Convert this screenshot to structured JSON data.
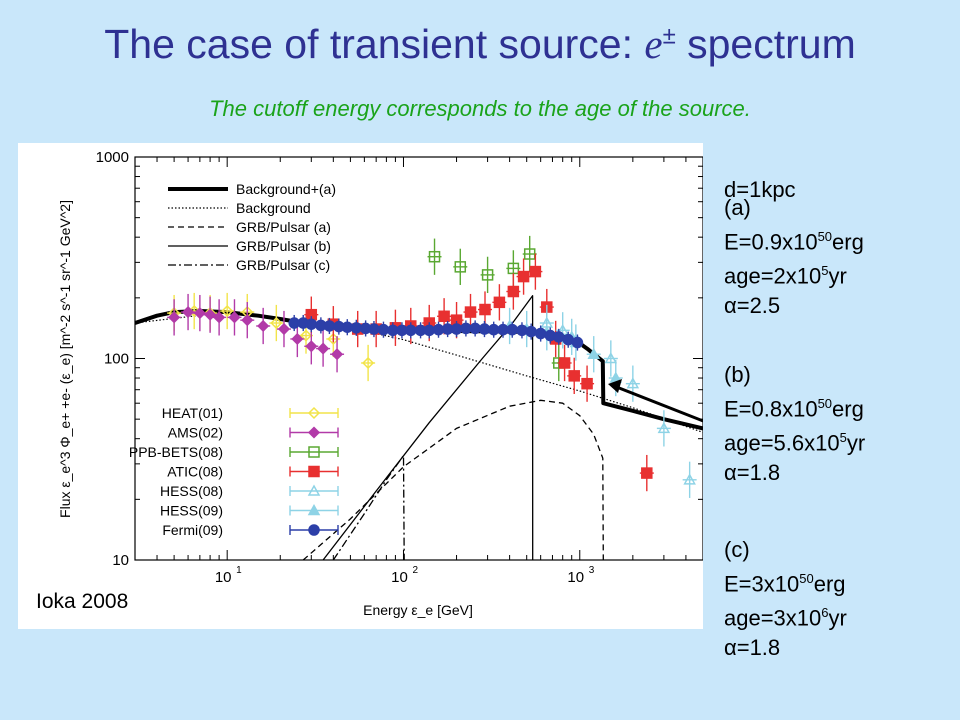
{
  "slide": {
    "title_main": "The case of transient source: ",
    "title_symbol": "e",
    "title_pm": "±",
    "title_tail": " spectrum",
    "subtitle": "The cutoff energy corresponds to the age of the source.",
    "credit": "Ioka 2008",
    "distance": "d=1kpc",
    "params": [
      {
        "tag": "(a)",
        "E_pre": "E=0.9x10",
        "E_exp": "50",
        "E_post": "erg",
        "age_pre": "age=2x10",
        "age_exp": "5",
        "age_post": "yr",
        "alpha": "=2.5"
      },
      {
        "tag": "(b)",
        "E_pre": "E=0.8x10",
        "E_exp": "50",
        "E_post": "erg",
        "age_pre": "age=5.6x10",
        "age_exp": "5",
        "age_post": "yr",
        "alpha": "=1.8"
      },
      {
        "tag": "(c)",
        "E_pre": "E=3x10",
        "E_exp": "50",
        "E_post": "erg",
        "age_pre": "age=3x10",
        "age_exp": "6",
        "age_post": "yr",
        "alpha": "=1.8"
      }
    ],
    "alpha_symbol": "α"
  },
  "chart_data": {
    "type": "line",
    "xscale": "log",
    "yscale": "log",
    "xlim": [
      3,
      5000
    ],
    "ylim": [
      10,
      1000
    ],
    "xlabel": "Energy ε_e [GeV]",
    "ylabel": "Flux ε_e^3 Φ_e+ +e- (ε_e) [m^-2 s^-1 sr^-1 GeV^2]",
    "xticks": [
      {
        "v": 10,
        "base": "10",
        "exp": "1"
      },
      {
        "v": 100,
        "base": "10",
        "exp": "2"
      },
      {
        "v": 1000,
        "base": "10",
        "exp": "3"
      }
    ],
    "yticks": [
      {
        "v": 10,
        "label": "10"
      },
      {
        "v": 100,
        "label": "100"
      },
      {
        "v": 1000,
        "label": "1000"
      }
    ],
    "legend_position": "left",
    "lines": [
      {
        "name": "Background+(a)",
        "style": "thick",
        "color": "#000000",
        "x": [
          3,
          4,
          5,
          7,
          10,
          15,
          20,
          30,
          50,
          100,
          200,
          400,
          550,
          700,
          900,
          1100,
          1350,
          1360,
          2000,
          3000,
          5000
        ],
        "y": [
          150,
          163,
          170,
          172,
          170,
          163,
          157,
          148,
          142,
          138,
          137,
          136,
          135,
          132,
          127,
          112,
          97,
          60,
          55,
          50,
          45
        ]
      },
      {
        "name": "Background",
        "style": "dotted",
        "color": "#000000",
        "x": [
          3,
          10,
          20,
          50,
          100,
          200,
          500,
          1000,
          2000,
          5000
        ],
        "y": [
          150,
          170,
          157,
          142,
          124,
          104,
          82,
          69,
          57,
          43
        ]
      },
      {
        "name": "GRB/Pulsar (a)",
        "style": "dashed",
        "color": "#000000",
        "x": [
          27,
          50,
          100,
          200,
          400,
          600,
          800,
          1000,
          1200,
          1350,
          1360
        ],
        "y": [
          10,
          16,
          29,
          45,
          58,
          62,
          60,
          52,
          42,
          32,
          10
        ]
      },
      {
        "name": "GRB/Pulsar (b)",
        "style": "solid",
        "color": "#000000",
        "x": [
          35,
          70,
          140,
          280,
          420,
          540,
          541
        ],
        "y": [
          10,
          22,
          48,
          100,
          152,
          205,
          10
        ]
      },
      {
        "name": "GRB/Pulsar (c)",
        "style": "dashdot",
        "color": "#000000",
        "x": [
          40,
          60,
          80,
          100,
          101
        ],
        "y": [
          10,
          17,
          25,
          33,
          10
        ]
      }
    ],
    "data_series": [
      {
        "name": "HEAT(01)",
        "color": "#f2e44a",
        "marker": "diamond-open",
        "points": [
          [
            5,
            168
          ],
          [
            6.5,
            172
          ],
          [
            8,
            168
          ],
          [
            10,
            172
          ],
          [
            13,
            170
          ],
          [
            19,
            150
          ],
          [
            28,
            130
          ],
          [
            40,
            125
          ],
          [
            63,
            95
          ]
        ]
      },
      {
        "name": "AMS(02)",
        "color": "#b23aa8",
        "marker": "diamond",
        "points": [
          [
            5,
            160
          ],
          [
            6,
            170
          ],
          [
            7,
            168
          ],
          [
            8,
            165
          ],
          [
            9,
            160
          ],
          [
            11,
            160
          ],
          [
            13,
            155
          ],
          [
            16,
            145
          ],
          [
            21,
            140
          ],
          [
            25,
            125
          ],
          [
            30,
            115
          ],
          [
            35,
            112
          ],
          [
            42,
            105
          ]
        ]
      },
      {
        "name": "PPB-BETS(08)",
        "color": "#5aa832",
        "marker": "square-open",
        "points": [
          [
            150,
            320
          ],
          [
            210,
            285
          ],
          [
            300,
            260
          ],
          [
            420,
            280
          ],
          [
            520,
            330
          ],
          [
            760,
            95
          ]
        ]
      },
      {
        "name": "ATIC(08)",
        "color": "#e83030",
        "marker": "square",
        "points": [
          [
            30,
            165
          ],
          [
            40,
            148
          ],
          [
            55,
            140
          ],
          [
            70,
            140
          ],
          [
            90,
            142
          ],
          [
            110,
            145
          ],
          [
            140,
            150
          ],
          [
            170,
            162
          ],
          [
            200,
            155
          ],
          [
            240,
            170
          ],
          [
            290,
            175
          ],
          [
            350,
            190
          ],
          [
            420,
            215
          ],
          [
            480,
            255
          ],
          [
            560,
            270
          ],
          [
            650,
            180
          ],
          [
            730,
            125
          ],
          [
            820,
            95
          ],
          [
            930,
            82
          ],
          [
            1100,
            75
          ],
          [
            2400,
            27
          ]
        ]
      },
      {
        "name": "HESS(08)",
        "color": "#8ed3e6",
        "marker": "triangle-open",
        "points": [
          [
            650,
            150
          ],
          [
            800,
            138
          ],
          [
            950,
            120
          ],
          [
            1500,
            100
          ],
          [
            2000,
            75
          ],
          [
            3000,
            45
          ],
          [
            4200,
            25
          ]
        ]
      },
      {
        "name": "HESS(09)",
        "color": "#8ed3e6",
        "marker": "triangle",
        "points": [
          [
            400,
            145
          ],
          [
            500,
            140
          ],
          [
            650,
            135
          ],
          [
            900,
            128
          ],
          [
            1200,
            105
          ],
          [
            1600,
            80
          ]
        ]
      },
      {
        "name": "Fermi(09)",
        "color": "#2c3fa8",
        "marker": "circle",
        "points": [
          [
            24,
            150
          ],
          [
            27,
            150
          ],
          [
            30,
            148
          ],
          [
            34,
            146
          ],
          [
            38,
            145
          ],
          [
            43,
            144
          ],
          [
            48,
            143
          ],
          [
            54,
            142
          ],
          [
            61,
            141
          ],
          [
            68,
            140
          ],
          [
            77,
            139
          ],
          [
            87,
            138
          ],
          [
            98,
            138
          ],
          [
            110,
            138
          ],
          [
            125,
            138
          ],
          [
            140,
            138
          ],
          [
            158,
            139
          ],
          [
            178,
            140
          ],
          [
            200,
            140
          ],
          [
            226,
            141
          ],
          [
            255,
            141
          ],
          [
            288,
            140
          ],
          [
            325,
            139
          ],
          [
            367,
            139
          ],
          [
            414,
            139
          ],
          [
            470,
            138
          ],
          [
            530,
            136
          ],
          [
            600,
            133
          ],
          [
            680,
            130
          ],
          [
            760,
            128
          ],
          [
            860,
            124
          ],
          [
            970,
            120
          ]
        ]
      }
    ],
    "legend": [
      "Background+(a)",
      "Background",
      "GRB/Pulsar (a)",
      "GRB/Pulsar (b)",
      "GRB/Pulsar (c)",
      "HEAT(01)",
      "AMS(02)",
      "PPB-BETS(08)",
      "ATIC(08)",
      "HESS(08)",
      "HESS(09)",
      "Fermi(09)"
    ]
  }
}
